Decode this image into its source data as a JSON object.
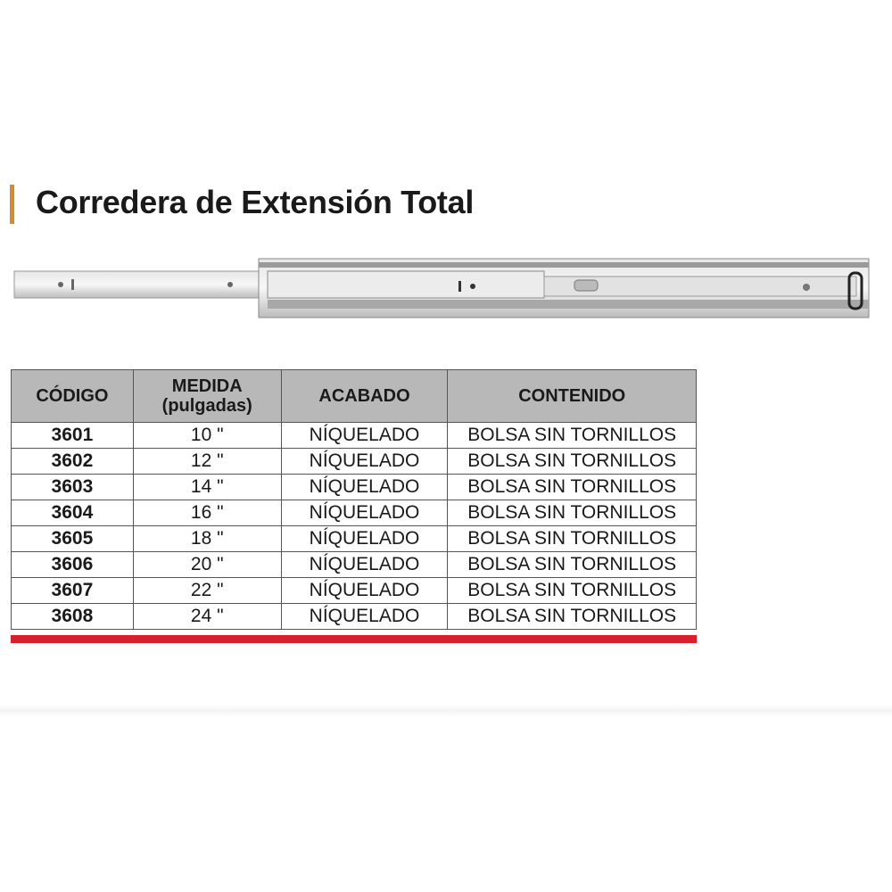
{
  "title": "Corredera de Extensión Total",
  "accent_color": "#d98a2b",
  "table": {
    "headers": [
      "CÓDIGO",
      "MEDIDA",
      "(pulgadas)",
      "ACABADO",
      "CONTENIDO"
    ],
    "rows": [
      {
        "codigo": "3601",
        "medida": "10 \"",
        "acabado": "NÍQUELADO",
        "contenido": "BOLSA SIN TORNILLOS"
      },
      {
        "codigo": "3602",
        "medida": "12 \"",
        "acabado": "NÍQUELADO",
        "contenido": "BOLSA SIN TORNILLOS"
      },
      {
        "codigo": "3603",
        "medida": "14 \"",
        "acabado": "NÍQUELADO",
        "contenido": "BOLSA SIN TORNILLOS"
      },
      {
        "codigo": "3604",
        "medida": "16 \"",
        "acabado": "NÍQUELADO",
        "contenido": "BOLSA SIN TORNILLOS"
      },
      {
        "codigo": "3605",
        "medida": "18 \"",
        "acabado": "NÍQUELADO",
        "contenido": "BOLSA SIN TORNILLOS"
      },
      {
        "codigo": "3606",
        "medida": "20 \"",
        "acabado": "NÍQUELADO",
        "contenido": "BOLSA SIN TORNILLOS"
      },
      {
        "codigo": "3607",
        "medida": "22 \"",
        "acabado": "NÍQUELADO",
        "contenido": "BOLSA SIN TORNILLOS"
      },
      {
        "codigo": "3608",
        "medida": "24 \"",
        "acabado": "NÍQUELADO",
        "contenido": "BOLSA SIN TORNILLOS"
      }
    ],
    "footer_color": "#d7202e"
  }
}
